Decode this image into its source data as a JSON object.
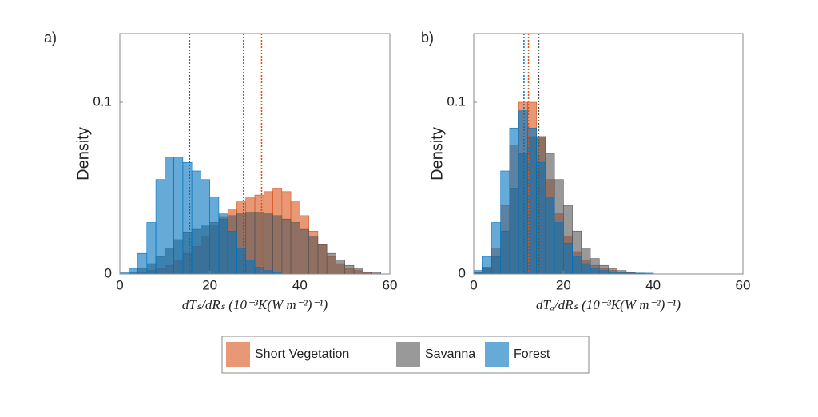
{
  "chart_data": [
    {
      "type": "histogram",
      "panel": "a)",
      "ylabel": "Density",
      "xlabel": "dTₛ/dRₛ  (10⁻³K(W m⁻²)⁻¹)",
      "xlim": [
        0,
        60
      ],
      "xticks": [
        0,
        20,
        40,
        60
      ],
      "ylim": [
        0,
        0.14
      ],
      "yticks": [
        0,
        0.1
      ],
      "bins": [
        0,
        2,
        4,
        6,
        8,
        10,
        12,
        14,
        16,
        18,
        20,
        22,
        24,
        26,
        28,
        30,
        32,
        34,
        36,
        38,
        40,
        42,
        44,
        46,
        48,
        50,
        52,
        54,
        56,
        58,
        60
      ],
      "series": [
        {
          "name": "Short Vegetation",
          "color": "#d95319",
          "mean": 31.5,
          "values": [
            0,
            0,
            0.001,
            0.002,
            0.003,
            0.005,
            0.008,
            0.012,
            0.016,
            0.022,
            0.028,
            0.033,
            0.038,
            0.042,
            0.045,
            0.046,
            0.048,
            0.05,
            0.048,
            0.042,
            0.034,
            0.025,
            0.017,
            0.01,
            0.006,
            0.003,
            0.002,
            0.001,
            0,
            0
          ]
        },
        {
          "name": "Savanna",
          "color": "#555555",
          "mean": 27.5,
          "values": [
            0,
            0.001,
            0.003,
            0.006,
            0.01,
            0.015,
            0.02,
            0.024,
            0.026,
            0.028,
            0.03,
            0.032,
            0.034,
            0.035,
            0.036,
            0.036,
            0.035,
            0.034,
            0.032,
            0.03,
            0.026,
            0.022,
            0.017,
            0.012,
            0.008,
            0.005,
            0.003,
            0.001,
            0.001,
            0
          ]
        },
        {
          "name": "Forest",
          "color": "#0072bd",
          "mean": 15.5,
          "values": [
            0.001,
            0.003,
            0.012,
            0.03,
            0.055,
            0.068,
            0.068,
            0.065,
            0.06,
            0.055,
            0.045,
            0.035,
            0.025,
            0.015,
            0.008,
            0.004,
            0.002,
            0.001,
            0,
            0,
            0,
            0,
            0,
            0,
            0,
            0,
            0,
            0,
            0,
            0
          ]
        }
      ]
    },
    {
      "type": "histogram",
      "panel": "b)",
      "ylabel": "Density",
      "xlabel": "dTₐ/dRₛ  (10⁻³K(W m⁻²)⁻¹)",
      "xlim": [
        0,
        60
      ],
      "xticks": [
        0,
        20,
        40,
        60
      ],
      "ylim": [
        0,
        0.14
      ],
      "yticks": [
        0,
        0.1
      ],
      "bins": [
        0,
        2,
        4,
        6,
        8,
        10,
        12,
        14,
        16,
        18,
        20,
        22,
        24,
        26,
        28,
        30,
        32,
        34,
        36,
        38,
        40,
        42,
        44,
        46,
        48,
        50,
        52,
        54,
        56,
        58,
        60
      ],
      "series": [
        {
          "name": "Short Vegetation",
          "color": "#d95319",
          "mean": 12.2,
          "values": [
            0.001,
            0.004,
            0.015,
            0.04,
            0.075,
            0.1,
            0.1,
            0.08,
            0.055,
            0.035,
            0.022,
            0.013,
            0.008,
            0.005,
            0.003,
            0.002,
            0.001,
            0.001,
            0.0005,
            0,
            0,
            0,
            0,
            0,
            0,
            0,
            0,
            0,
            0,
            0
          ]
        },
        {
          "name": "Savanna",
          "color": "#555555",
          "mean": 14.5,
          "values": [
            0.001,
            0.003,
            0.01,
            0.025,
            0.05,
            0.07,
            0.08,
            0.08,
            0.07,
            0.055,
            0.04,
            0.025,
            0.015,
            0.009,
            0.005,
            0.003,
            0.002,
            0.001,
            0.0005,
            0,
            0,
            0,
            0,
            0,
            0,
            0,
            0,
            0,
            0,
            0
          ]
        },
        {
          "name": "Forest",
          "color": "#0072bd",
          "mean": 11.2,
          "values": [
            0.002,
            0.01,
            0.03,
            0.06,
            0.085,
            0.095,
            0.085,
            0.065,
            0.045,
            0.03,
            0.018,
            0.01,
            0.006,
            0.003,
            0.002,
            0.001,
            0.001,
            0.0005,
            0.0005,
            0.0005,
            0,
            0,
            0,
            0,
            0,
            0,
            0,
            0,
            0,
            0
          ]
        }
      ]
    }
  ]
}
